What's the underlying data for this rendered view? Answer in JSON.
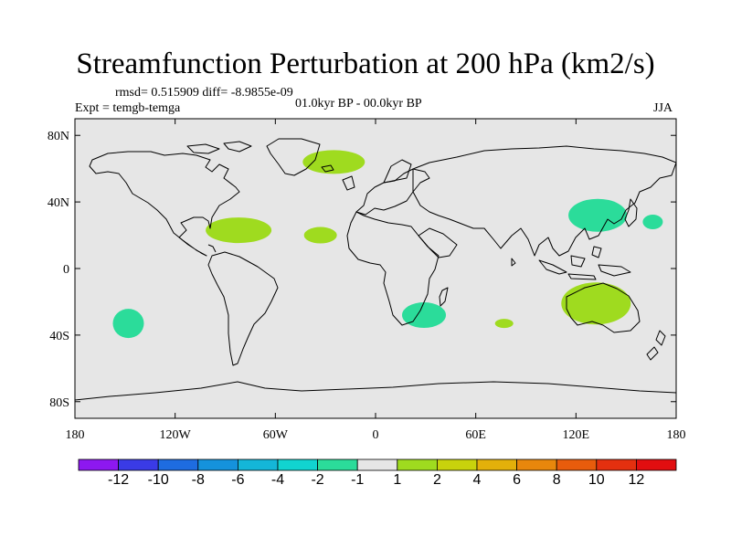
{
  "header": {
    "title": "Streamfunction Perturbation at 200 hPa (km2/s)",
    "stats": "rmsd= 0.515909 diff= -8.9855e-09",
    "experiment": "Expt = temgb-temga",
    "period": "01.0kyr BP - 00.0kyr BP",
    "season": "JJA"
  },
  "map": {
    "background_color": "#e6e6e6",
    "lat_labels": [
      "80N",
      "40N",
      "0",
      "40S",
      "80S"
    ],
    "lon_labels": [
      "180",
      "120W",
      "60W",
      "0",
      "60E",
      "120E",
      "180"
    ],
    "anomalies": [
      {
        "region": "North Atlantic / Greenland",
        "lon": -25,
        "lat": 64,
        "level": "1 to 2",
        "color": "#9fdb1f"
      },
      {
        "region": "Gulf of Mexico / Caribbean",
        "lon": -82,
        "lat": 23,
        "level": "1 to 2",
        "color": "#9fdb1f"
      },
      {
        "region": "Subtropical Atlantic",
        "lon": -33,
        "lat": 20,
        "level": "1 to 2",
        "color": "#9fdb1f"
      },
      {
        "region": "Northwest Pacific / Japan",
        "lon": 133,
        "lat": 32,
        "level": "-2 to -1",
        "color": "#2bdc9a"
      },
      {
        "region": "Central North Pacific",
        "lon": 166,
        "lat": 28,
        "level": "-2 to -1",
        "color": "#2bdc9a"
      },
      {
        "region": "Australia",
        "lon": 132,
        "lat": -21,
        "level": "1 to 2",
        "color": "#9fdb1f"
      },
      {
        "region": "Southern Africa",
        "lon": 29,
        "lat": -28,
        "level": "-2 to -1",
        "color": "#2bdc9a"
      },
      {
        "region": "South Indian Ocean",
        "lon": 77,
        "lat": -33,
        "level": "1 to 2",
        "color": "#9fdb1f"
      },
      {
        "region": "Southeast Pacific",
        "lon": -148,
        "lat": -33,
        "level": "-2 to -1",
        "color": "#2bdc9a"
      }
    ]
  },
  "colorbar": {
    "labels": [
      "-12",
      "-10",
      "-8",
      "-6",
      "-4",
      "-2",
      "-1",
      "1",
      "2",
      "4",
      "6",
      "8",
      "10",
      "12"
    ],
    "colors": [
      "#8d18f0",
      "#3a3be6",
      "#1e6ce0",
      "#1592dc",
      "#14b6d8",
      "#11d4d0",
      "#2bdc9a",
      "#e6e6e6",
      "#9fdb1f",
      "#c8d20c",
      "#e3b00a",
      "#e8870c",
      "#e85c0c",
      "#e4300f",
      "#e10e10"
    ]
  }
}
